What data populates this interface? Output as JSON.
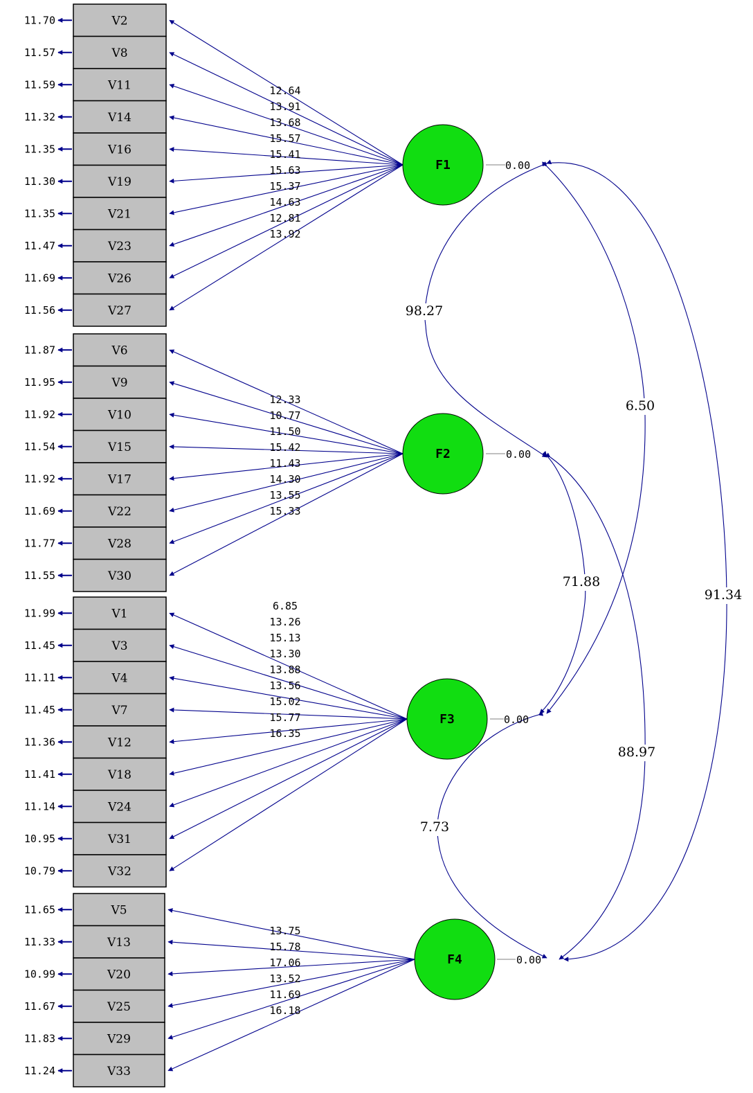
{
  "colors": {
    "path": "#00008b",
    "factor_fill": "#11dd11",
    "box_fill": "#c0c0c0"
  },
  "factors": [
    {
      "name": "F1",
      "variance": "0.00"
    },
    {
      "name": "F2",
      "variance": "0.00"
    },
    {
      "name": "F3",
      "variance": "0.00"
    },
    {
      "name": "F4",
      "variance": "0.00"
    }
  ],
  "groups": [
    {
      "factor": "F1",
      "indicators": [
        {
          "name": "V2",
          "error": "11.70",
          "loading": "12.64"
        },
        {
          "name": "V8",
          "error": "11.57",
          "loading": "13.91"
        },
        {
          "name": "V11",
          "error": "11.59",
          "loading": "13.68"
        },
        {
          "name": "V14",
          "error": "11.32",
          "loading": "15.57"
        },
        {
          "name": "V16",
          "error": "11.35",
          "loading": "15.41"
        },
        {
          "name": "V19",
          "error": "11.30",
          "loading": "15.63"
        },
        {
          "name": "V21",
          "error": "11.35",
          "loading": "15.37"
        },
        {
          "name": "V23",
          "error": "11.47",
          "loading": "14.63"
        },
        {
          "name": "V26",
          "error": "11.69",
          "loading": "12.81"
        },
        {
          "name": "V27",
          "error": "11.56",
          "loading": "13.92"
        }
      ]
    },
    {
      "factor": "F2",
      "indicators": [
        {
          "name": "V6",
          "error": "11.87",
          "loading": "12.33"
        },
        {
          "name": "V9",
          "error": "11.95",
          "loading": "10.77"
        },
        {
          "name": "V10",
          "error": "11.92",
          "loading": "11.50"
        },
        {
          "name": "V15",
          "error": "11.54",
          "loading": "15.42"
        },
        {
          "name": "V17",
          "error": "11.92",
          "loading": "11.43"
        },
        {
          "name": "V22",
          "error": "11.69",
          "loading": "14.30"
        },
        {
          "name": "V28",
          "error": "11.77",
          "loading": "13.55"
        },
        {
          "name": "V30",
          "error": "11.55",
          "loading": "15.33"
        }
      ]
    },
    {
      "factor": "F3",
      "indicators": [
        {
          "name": "V1",
          "error": "11.99",
          "loading": "6.85"
        },
        {
          "name": "V3",
          "error": "11.45",
          "loading": "13.26"
        },
        {
          "name": "V4",
          "error": "11.11",
          "loading": "15.13"
        },
        {
          "name": "V7",
          "error": "11.45",
          "loading": "13.30"
        },
        {
          "name": "V12",
          "error": "11.36",
          "loading": "13.88"
        },
        {
          "name": "V18",
          "error": "11.41",
          "loading": "13.56"
        },
        {
          "name": "V24",
          "error": "11.14",
          "loading": "15.02"
        },
        {
          "name": "V31",
          "error": "10.95",
          "loading": "15.77"
        },
        {
          "name": "V32",
          "error": "10.79",
          "loading": "16.35"
        }
      ]
    },
    {
      "factor": "F4",
      "indicators": [
        {
          "name": "V5",
          "error": "11.65",
          "loading": "13.75"
        },
        {
          "name": "V13",
          "error": "11.33",
          "loading": "15.78"
        },
        {
          "name": "V20",
          "error": "10.99",
          "loading": "17.06"
        },
        {
          "name": "V25",
          "error": "11.67",
          "loading": "13.52"
        },
        {
          "name": "V29",
          "error": "11.83",
          "loading": "11.69"
        },
        {
          "name": "V33",
          "error": "11.24",
          "loading": "16.18"
        }
      ]
    }
  ],
  "covariances": [
    {
      "from": "F1",
      "to": "F2",
      "value": "98.27"
    },
    {
      "from": "F1",
      "to": "F3",
      "value": "6.50"
    },
    {
      "from": "F1",
      "to": "F4",
      "value": "91.34"
    },
    {
      "from": "F2",
      "to": "F3",
      "value": "71.88"
    },
    {
      "from": "F2",
      "to": "F4",
      "value": "88.97"
    },
    {
      "from": "F3",
      "to": "F4",
      "value": "7.73"
    }
  ]
}
